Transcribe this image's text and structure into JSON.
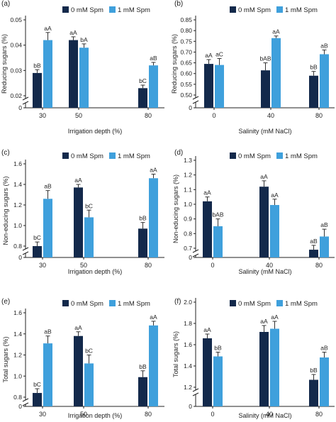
{
  "colors": {
    "spm0": "#13294b",
    "spm1": "#3fa0dc",
    "axis": "#222222",
    "error": "#333333"
  },
  "chart_data": [
    {
      "panel": "(a)",
      "type": "bar",
      "categories": [
        "30",
        "50",
        "80"
      ],
      "xlabel": "Irrigation depth (%)",
      "ylabel": "Reducing sugars (%)",
      "ylim": [
        0,
        0.05
      ],
      "yticks": [
        "0",
        "0.02",
        "0.03",
        "0.04",
        "0.05"
      ],
      "axis_break": true,
      "legend": [
        "0 mM Spm",
        "1 mM Spm"
      ],
      "legend_position": "top",
      "series": [
        {
          "name": "0 mM Spm",
          "values": [
            0.029,
            0.042,
            0.023
          ],
          "errors": [
            0.0013,
            0.0013,
            0.0012
          ],
          "letters": [
            "bB",
            "aA",
            "bC"
          ]
        },
        {
          "name": "1 mM Spm",
          "values": [
            0.042,
            0.039,
            0.032
          ],
          "errors": [
            0.003,
            0.0015,
            0.0012
          ],
          "letters": [
            "aA",
            "bA",
            "aB"
          ]
        }
      ]
    },
    {
      "panel": "(b)",
      "type": "bar",
      "categories": [
        "0",
        "40",
        "80"
      ],
      "xlabel": "Salinity (mM NaCl)",
      "ylabel": "Reducing sugars (%)",
      "ylim": [
        0,
        0.85
      ],
      "yticks": [
        "0",
        "0.50",
        "0.55",
        "0.60",
        "0.65",
        "0.70",
        "0.75",
        "0.80",
        "0.85"
      ],
      "axis_break": true,
      "legend": [
        "0 mM Spm",
        "1 mM Spm"
      ],
      "legend_position": "top",
      "series": [
        {
          "name": "0 mM Spm",
          "values": [
            0.645,
            0.615,
            0.59
          ],
          "errors": [
            0.02,
            0.035,
            0.02
          ],
          "letters": [
            "aA",
            "bAB",
            "bB"
          ]
        },
        {
          "name": "1 mM Spm",
          "values": [
            0.64,
            0.765,
            0.69
          ],
          "errors": [
            0.03,
            0.01,
            0.02
          ],
          "letters": [
            "aC",
            "aA",
            "aB"
          ]
        }
      ]
    },
    {
      "panel": "(c)",
      "type": "bar",
      "categories": [
        "30",
        "50",
        "80"
      ],
      "xlabel": "Irrigation depth (%)",
      "ylabel": "Non-educing sugars (%)",
      "ylim": [
        0,
        1.6
      ],
      "yticks": [
        "0",
        "0.8",
        "1.0",
        "1.2",
        "1.4",
        "1.6"
      ],
      "axis_break": true,
      "legend": [
        "0 mM Spm",
        "1 mM Spm"
      ],
      "legend_position": "top",
      "series": [
        {
          "name": "0 mM Spm",
          "values": [
            0.8,
            1.37,
            0.97
          ],
          "errors": [
            0.04,
            0.03,
            0.06
          ],
          "letters": [
            "bC",
            "aA",
            "bB"
          ]
        },
        {
          "name": "1 mM Spm",
          "values": [
            1.26,
            1.08,
            1.46
          ],
          "errors": [
            0.08,
            0.07,
            0.04
          ],
          "letters": [
            "aB",
            "bC",
            "aA"
          ]
        }
      ]
    },
    {
      "panel": "(d)",
      "type": "bar",
      "categories": [
        "0",
        "40",
        "80"
      ],
      "xlabel": "Salinity (mM NaCl)",
      "ylabel": "Non-educing sugars (%)",
      "ylim": [
        0,
        1.3
      ],
      "yticks": [
        "0",
        "0.7",
        "0.8",
        "0.9",
        "1.0",
        "1.1",
        "1.2",
        "1.3"
      ],
      "axis_break": true,
      "legend": [
        "0 mM Spm",
        "1 mM Spm"
      ],
      "legend_position": "top",
      "series": [
        {
          "name": "0 mM Spm",
          "values": [
            1.02,
            1.12,
            0.69
          ],
          "errors": [
            0.03,
            0.04,
            0.03
          ],
          "letters": [
            "aA",
            "aA",
            "aB"
          ]
        },
        {
          "name": "1 mM Spm",
          "values": [
            0.85,
            0.995,
            0.78
          ],
          "errors": [
            0.05,
            0.04,
            0.05
          ],
          "letters": [
            "bAB",
            "aA",
            "aB"
          ]
        }
      ]
    },
    {
      "panel": "(e)",
      "type": "bar",
      "categories": [
        "30",
        "50",
        "80"
      ],
      "xlabel": "Irrigation depth (%)",
      "ylabel": "Total sugars (%)",
      "ylim": [
        0,
        1.6
      ],
      "yticks": [
        "0",
        "0.8",
        "1.0",
        "1.2",
        "1.4",
        "1.6"
      ],
      "axis_break": true,
      "legend": [
        "0 mM Spm",
        "1 mM Spm"
      ],
      "legend_position": "top",
      "series": [
        {
          "name": "0 mM Spm",
          "values": [
            0.84,
            1.38,
            0.99
          ],
          "errors": [
            0.04,
            0.04,
            0.06
          ],
          "letters": [
            "bC",
            "aA",
            "bB"
          ]
        },
        {
          "name": "1 mM Spm",
          "values": [
            1.31,
            1.12,
            1.48
          ],
          "errors": [
            0.07,
            0.08,
            0.04
          ],
          "letters": [
            "aB",
            "bC",
            "aA"
          ]
        }
      ]
    },
    {
      "panel": "(f)",
      "type": "bar",
      "categories": [
        "0",
        "40",
        "80"
      ],
      "xlabel": "Salinity (mM NaCl)",
      "ylabel": "Total sugars (%)",
      "ylim": [
        0,
        2.0
      ],
      "yticks": [
        "0",
        "1.2",
        "1.4",
        "1.6",
        "1.8",
        "2.0"
      ],
      "axis_break": true,
      "legend": [
        "0 mM Spm",
        "1 mM Spm"
      ],
      "legend_position": "top",
      "series": [
        {
          "name": "0 mM Spm",
          "values": [
            1.66,
            1.72,
            1.27
          ],
          "errors": [
            0.04,
            0.06,
            0.05
          ],
          "letters": [
            "aA",
            "aA",
            "bB"
          ]
        },
        {
          "name": "1 mM Spm",
          "values": [
            1.49,
            1.75,
            1.48
          ],
          "errors": [
            0.04,
            0.07,
            0.05
          ],
          "letters": [
            "bB",
            "aA",
            "aB"
          ]
        }
      ]
    }
  ]
}
